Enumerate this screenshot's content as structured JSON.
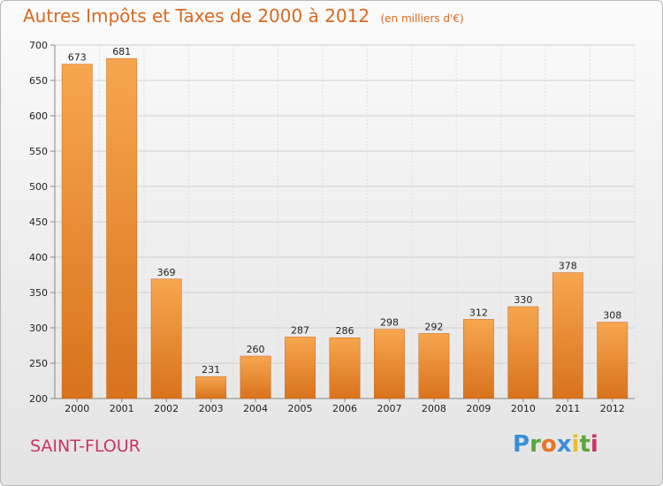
{
  "chart_data": {
    "type": "bar",
    "title": "Autres Impôts et Taxes de 2000 à 2012",
    "subtitle": "(en milliers d'€)",
    "categories": [
      "2000",
      "2001",
      "2002",
      "2003",
      "2004",
      "2005",
      "2006",
      "2007",
      "2008",
      "2009",
      "2010",
      "2011",
      "2012"
    ],
    "values": [
      673,
      681,
      369,
      231,
      260,
      287,
      286,
      298,
      292,
      312,
      330,
      378,
      308
    ],
    "ylim": [
      200,
      700
    ],
    "yticks": [
      200,
      250,
      300,
      350,
      400,
      450,
      500,
      550,
      600,
      650,
      700
    ],
    "grid": true,
    "colors": {
      "bar_light": "#f7a650",
      "bar_dark": "#d8731c",
      "accent": "#d9691f"
    }
  },
  "footer": {
    "commune": "SAINT-FLOUR",
    "logo": "Proxiti"
  }
}
